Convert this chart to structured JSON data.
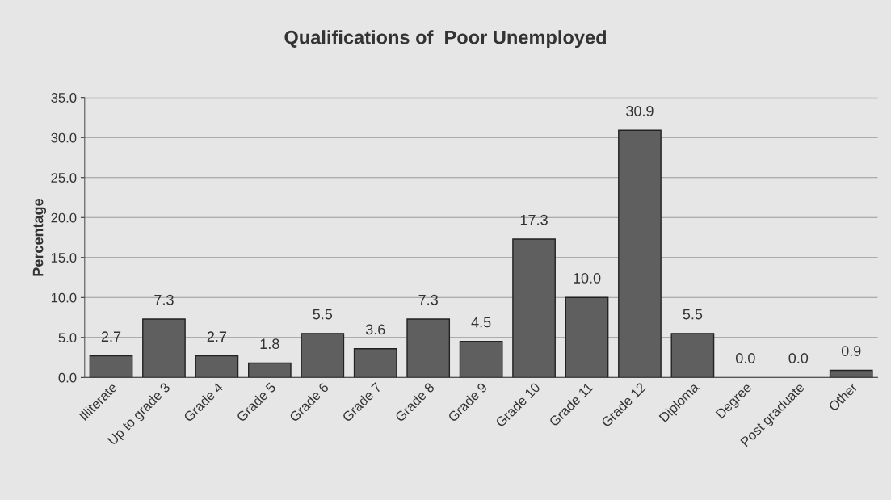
{
  "chart_data": {
    "type": "bar",
    "title": "Qualifications of  Poor Unemployed",
    "ylabel": "Percentage",
    "categories": [
      "Illiterate",
      "Up to grade 3",
      "Grade 4",
      "Grade 5",
      "Grade 6",
      "Grade 7",
      "Grade 8",
      "Grade 9",
      "Grade 10",
      "Grade 11",
      "Grade 12",
      "Diploma",
      "Degree",
      "Post graduate",
      "Other"
    ],
    "values": [
      2.7,
      7.3,
      2.7,
      1.8,
      5.5,
      3.6,
      7.3,
      4.5,
      17.3,
      10.0,
      30.9,
      5.5,
      0.0,
      0.0,
      0.9
    ],
    "value_labels": [
      "2.7",
      "7.3",
      "2.7",
      "1.8",
      "5.5",
      "3.6",
      "7.3",
      "4.5",
      "17.3",
      "10.0",
      "30.9",
      "5.5",
      "0.0",
      "0.0",
      "0.9"
    ],
    "color": "#5f5f5f",
    "ylim": [
      0,
      35
    ],
    "yticks": [
      {
        "value": 0,
        "label": "0.0"
      },
      {
        "value": 5,
        "label": "5.0"
      },
      {
        "value": 10,
        "label": "10.0"
      },
      {
        "value": 15,
        "label": "15.0"
      },
      {
        "value": 20,
        "label": "20.0"
      },
      {
        "value": 25,
        "label": "25.0"
      },
      {
        "value": 30,
        "label": "30.0"
      },
      {
        "value": 35,
        "label": "35.0"
      }
    ],
    "grid": "y",
    "legend": false
  }
}
